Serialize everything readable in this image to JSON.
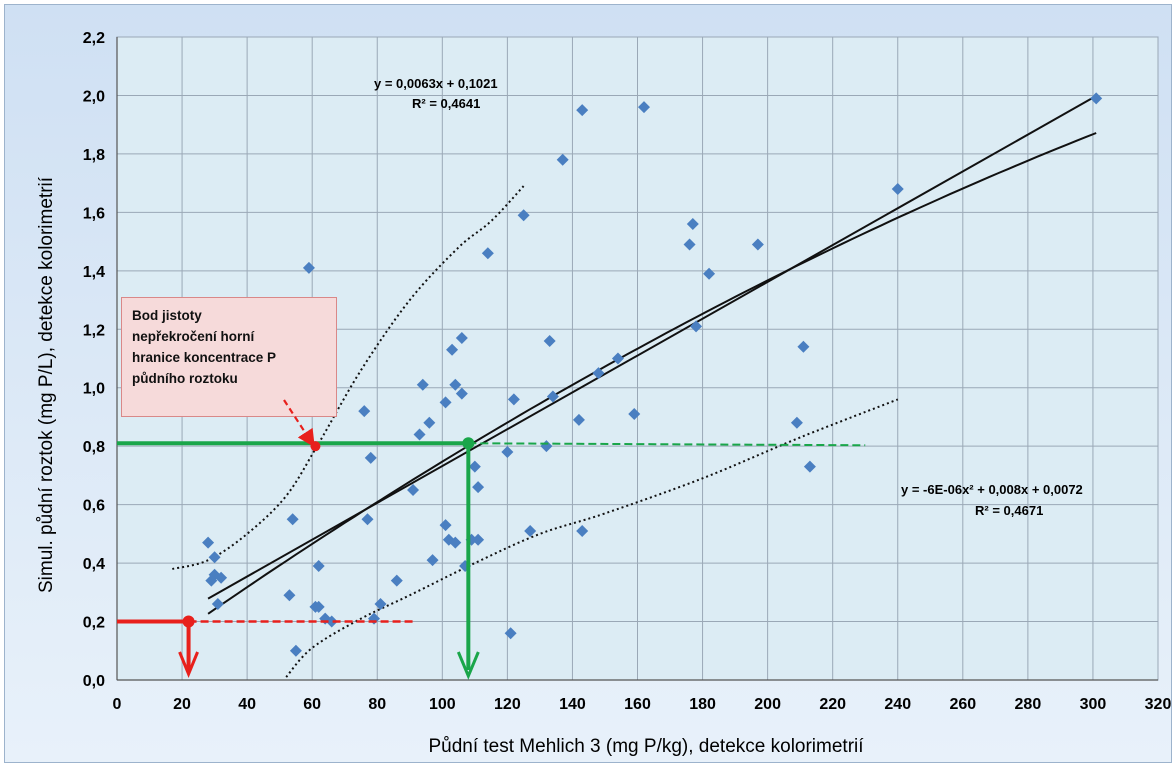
{
  "chart_data": {
    "type": "scatter",
    "xlabel": "Půdní test Mehlich 3 (mg P/kg), detekce kolorimetrií",
    "ylabel": "Simul. půdní roztok (mg P/L), detekce kolorimetrií",
    "xlim": [
      0,
      320
    ],
    "ylim": [
      0,
      2.2
    ],
    "x_ticks": [
      0,
      20,
      40,
      60,
      80,
      100,
      120,
      140,
      160,
      180,
      200,
      220,
      240,
      260,
      280,
      300,
      320
    ],
    "y_ticks": [
      0,
      0.2,
      0.4,
      0.6,
      0.8,
      1.0,
      1.2,
      1.4,
      1.6,
      1.8,
      2.0,
      2.2
    ],
    "y_tick_labels": [
      "0,0",
      "0,2",
      "0,4",
      "0,6",
      "0,8",
      "1,0",
      "1,2",
      "1,4",
      "1,6",
      "1,8",
      "2,0",
      "2,2"
    ],
    "grid": true,
    "marker_color": "#4a7fc1",
    "series": [
      {
        "points": [
          [
            28,
            0.47
          ],
          [
            29,
            0.34
          ],
          [
            30,
            0.42
          ],
          [
            30,
            0.36
          ],
          [
            31,
            0.26
          ],
          [
            32,
            0.35
          ],
          [
            53,
            0.29
          ],
          [
            54,
            0.55
          ],
          [
            55,
            0.1
          ],
          [
            59,
            1.41
          ],
          [
            61,
            0.25
          ],
          [
            62,
            0.39
          ],
          [
            62,
            0.25
          ],
          [
            64,
            0.21
          ],
          [
            66,
            0.2
          ],
          [
            76,
            0.92
          ],
          [
            77,
            0.55
          ],
          [
            78,
            0.76
          ],
          [
            79,
            0.21
          ],
          [
            81,
            0.26
          ],
          [
            86,
            0.34
          ],
          [
            91,
            0.65
          ],
          [
            93,
            0.84
          ],
          [
            94,
            1.01
          ],
          [
            96,
            0.88
          ],
          [
            97,
            0.41
          ],
          [
            101,
            0.95
          ],
          [
            101,
            0.53
          ],
          [
            102,
            0.48
          ],
          [
            103,
            1.13
          ],
          [
            104,
            1.01
          ],
          [
            104,
            0.47
          ],
          [
            106,
            1.17
          ],
          [
            106,
            0.98
          ],
          [
            107,
            0.39
          ],
          [
            109,
            0.48
          ],
          [
            110,
            0.73
          ],
          [
            111,
            0.66
          ],
          [
            111,
            0.48
          ],
          [
            114,
            1.46
          ],
          [
            120,
            0.78
          ],
          [
            121,
            0.16
          ],
          [
            122,
            0.96
          ],
          [
            125,
            1.59
          ],
          [
            127,
            0.51
          ],
          [
            132,
            0.8
          ],
          [
            133,
            1.16
          ],
          [
            134,
            0.97
          ],
          [
            137,
            1.78
          ],
          [
            142,
            0.89
          ],
          [
            143,
            1.95
          ],
          [
            143,
            0.51
          ],
          [
            148,
            1.05
          ],
          [
            154,
            1.1
          ],
          [
            159,
            0.91
          ],
          [
            162,
            1.96
          ],
          [
            176,
            1.49
          ],
          [
            177,
            1.56
          ],
          [
            178,
            1.21
          ],
          [
            182,
            1.39
          ],
          [
            197,
            1.49
          ],
          [
            209,
            0.88
          ],
          [
            211,
            1.14
          ],
          [
            213,
            0.73
          ],
          [
            240,
            1.68
          ],
          [
            301,
            1.99
          ]
        ]
      }
    ],
    "linear_fit": {
      "equation": "y = 0,0063x + 0,1021",
      "r2": "R² = 0,4641",
      "slope": 0.0063,
      "intercept": 0.1021,
      "x_range": [
        28,
        301
      ]
    },
    "poly_fit": {
      "equation": "y = -6E-06x² + 0,008x + 0,0072",
      "r2": "R² = 0,4671",
      "a": -6e-06,
      "b": 0.008,
      "c": 0.0072,
      "x_range": [
        28,
        301
      ]
    },
    "upper_confidence_curve": [
      [
        17,
        0.38
      ],
      [
        28,
        0.41
      ],
      [
        40,
        0.5
      ],
      [
        52,
        0.63
      ],
      [
        62,
        0.81
      ],
      [
        75,
        1.06
      ],
      [
        90,
        1.3
      ],
      [
        105,
        1.48
      ],
      [
        115,
        1.57
      ],
      [
        125,
        1.69
      ]
    ],
    "lower_confidence_curve": [
      [
        52,
        0.01
      ],
      [
        60,
        0.11
      ],
      [
        75,
        0.21
      ],
      [
        90,
        0.29
      ],
      [
        110,
        0.4
      ],
      [
        130,
        0.5
      ],
      [
        150,
        0.57
      ],
      [
        180,
        0.69
      ],
      [
        210,
        0.83
      ],
      [
        240,
        0.96
      ]
    ],
    "green_marker": {
      "x": 108,
      "y": 0.81,
      "color": "#1aa64a",
      "dash_to_x": 230
    },
    "red_point": {
      "x": 61,
      "y": 0.8,
      "color": "#e8201c"
    },
    "red_marker": {
      "x": 22,
      "y": 0.2,
      "color": "#e8201c",
      "dash_to_x": 91
    }
  },
  "callout": {
    "lines": [
      "Bod jistoty",
      "nepřekročení horní",
      "hranice koncentrace P",
      "půdního roztoku"
    ]
  }
}
